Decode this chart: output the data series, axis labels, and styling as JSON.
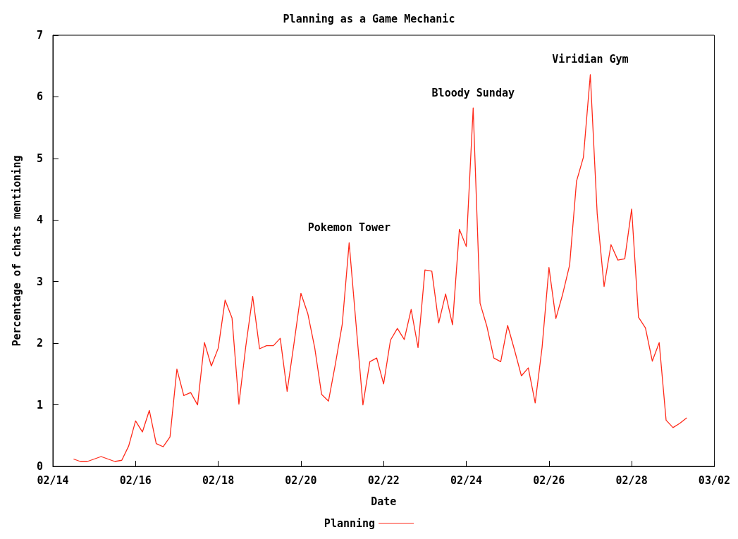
{
  "chart_data": {
    "type": "line",
    "title": "Planning as a Game Mechanic",
    "xlabel": "Date",
    "ylabel": "Percentage of chats mentioning",
    "x": [
      "--02-14T12:00",
      "--02-14T16:00",
      "--02-14T20:00",
      "--02-15T00:00",
      "--02-15T04:00",
      "--02-15T08:00",
      "--02-15T12:00",
      "--02-15T16:00",
      "--02-15T20:00",
      "--02-16T00:00",
      "--02-16T04:00",
      "--02-16T08:00",
      "--02-16T12:00",
      "--02-16T16:00",
      "--02-16T20:00",
      "--02-17T00:00",
      "--02-17T04:00",
      "--02-17T08:00",
      "--02-17T12:00",
      "--02-17T16:00",
      "--02-17T20:00",
      "--02-18T00:00",
      "--02-18T04:00",
      "--02-18T08:00",
      "--02-18T12:00",
      "--02-18T16:00",
      "--02-18T20:00",
      "--02-19T00:00",
      "--02-19T04:00",
      "--02-19T08:00",
      "--02-19T12:00",
      "--02-19T16:00",
      "--02-19T20:00",
      "--02-20T00:00",
      "--02-20T04:00",
      "--02-20T08:00",
      "--02-20T12:00",
      "--02-20T16:00",
      "--02-20T20:00",
      "--02-21T00:00",
      "--02-21T04:00",
      "--02-21T08:00",
      "--02-21T12:00",
      "--02-21T16:00",
      "--02-21T20:00",
      "--02-22T00:00",
      "--02-22T04:00",
      "--02-22T08:00",
      "--02-22T12:00",
      "--02-22T16:00",
      "--02-22T20:00",
      "--02-23T00:00",
      "--02-23T04:00",
      "--02-23T08:00",
      "--02-23T12:00",
      "--02-23T16:00",
      "--02-23T20:00",
      "--02-24T00:00",
      "--02-24T04:00",
      "--02-24T08:00",
      "--02-24T12:00",
      "--02-24T16:00",
      "--02-24T20:00",
      "--02-25T00:00",
      "--02-25T04:00",
      "--02-25T08:00",
      "--02-25T12:00",
      "--02-25T16:00",
      "--02-25T20:00",
      "--02-26T00:00",
      "--02-26T04:00",
      "--02-26T08:00",
      "--02-26T12:00",
      "--02-26T16:00",
      "--02-26T20:00",
      "--02-27T00:00",
      "--02-27T04:00",
      "--02-27T08:00",
      "--02-27T12:00",
      "--02-27T16:00",
      "--02-27T20:00",
      "--02-28T00:00",
      "--02-28T04:00",
      "--02-28T08:00",
      "--02-28T12:00",
      "--02-28T16:00",
      "--02-28T20:00",
      "--03-01T00:00",
      "--03-01T04:00",
      "--03-01T08:00"
    ],
    "series": [
      {
        "name": "Planning",
        "color": "#ff2a1a",
        "values": [
          0.12,
          0.08,
          0.08,
          0.12,
          0.16,
          0.12,
          0.08,
          0.1,
          0.33,
          0.74,
          0.56,
          0.91,
          0.37,
          0.32,
          0.48,
          1.58,
          1.15,
          1.2,
          1.0,
          2.01,
          1.63,
          1.92,
          2.7,
          2.41,
          1.01,
          1.95,
          2.76,
          1.91,
          1.96,
          1.96,
          2.08,
          1.22,
          2.0,
          2.81,
          2.48,
          1.93,
          1.17,
          1.06,
          1.66,
          2.31,
          3.63,
          2.31,
          1.0,
          1.7,
          1.76,
          1.34,
          2.05,
          2.24,
          2.06,
          2.55,
          1.93,
          3.19,
          3.17,
          2.33,
          2.8,
          2.3,
          3.85,
          3.57,
          5.82,
          2.65,
          2.27,
          1.76,
          1.7,
          2.29,
          1.89,
          1.47,
          1.6,
          1.03,
          1.93,
          3.23,
          2.4,
          2.8,
          3.27,
          4.63,
          5.02,
          6.36,
          4.1,
          2.92,
          3.6,
          3.35,
          3.37,
          4.18,
          2.42,
          2.25,
          1.71,
          2.01,
          0.75,
          0.63,
          0.7,
          0.79
        ]
      }
    ],
    "xlim": [
      "--02-14",
      "--03-02"
    ],
    "xticks": [
      {
        "value": "--02-14",
        "label": "02/14"
      },
      {
        "value": "--02-16",
        "label": "02/16"
      },
      {
        "value": "--02-18",
        "label": "02/18"
      },
      {
        "value": "--02-20",
        "label": "02/20"
      },
      {
        "value": "--02-22",
        "label": "02/22"
      },
      {
        "value": "--02-24",
        "label": "02/24"
      },
      {
        "value": "--02-26",
        "label": "02/26"
      },
      {
        "value": "--02-28",
        "label": "02/28"
      },
      {
        "value": "--03-02",
        "label": "03/02"
      }
    ],
    "ylim": [
      0,
      7
    ],
    "yticks": [
      0,
      1,
      2,
      3,
      4,
      5,
      6,
      7
    ],
    "annotations": [
      {
        "text": "Pokemon Tower",
        "x": "--02-21T04:00",
        "y": 3.63
      },
      {
        "text": "Bloody Sunday",
        "x": "--02-24T04:00",
        "y": 5.82
      },
      {
        "text": "Viridian Gym",
        "x": "--02-27T00:00",
        "y": 6.36
      }
    ],
    "grid": false,
    "legend": "bottom",
    "marker": "none",
    "line_style": "solid"
  }
}
